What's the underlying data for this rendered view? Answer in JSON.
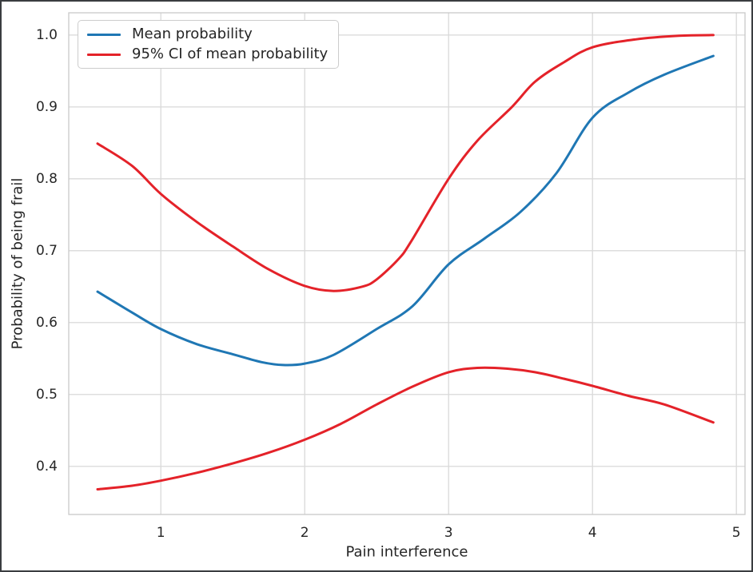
{
  "figure": {
    "background": "#ffffff",
    "outer_border_color": "#3a3d40"
  },
  "chart_data": {
    "type": "line",
    "title": "",
    "xlabel": "Pain interference",
    "ylabel": "Probability of being frail",
    "xlim": [
      0.36,
      5.06
    ],
    "ylim": [
      0.333,
      1.031
    ],
    "grid": true,
    "grid_color": "#d9d9d9",
    "spine_color": "#c9c9c9",
    "tick_color": "#262626",
    "xticks": {
      "values": [
        1,
        2,
        3,
        4,
        5
      ],
      "labels": [
        "1",
        "2",
        "3",
        "4",
        "5"
      ]
    },
    "yticks": {
      "values": [
        0.4,
        0.5,
        0.6,
        0.7,
        0.8,
        0.9,
        1.0
      ],
      "labels": [
        "0.4",
        "0.5",
        "0.6",
        "0.7",
        "0.8",
        "0.9",
        "1.0"
      ]
    },
    "legend": {
      "position": "upper left",
      "entries": [
        {
          "label": "Mean probability",
          "color": "#1f77b4"
        },
        {
          "label": "95% CI of mean probability",
          "color": "#e42229"
        }
      ]
    },
    "series": [
      {
        "name": "Mean probability",
        "color": "#1f77b4",
        "x": [
          0.56,
          0.8,
          1.0,
          1.25,
          1.5,
          1.7,
          1.85,
          2.0,
          2.2,
          2.5,
          2.75,
          3.0,
          3.25,
          3.5,
          3.75,
          4.0,
          4.25,
          4.5,
          4.84
        ],
        "y": [
          0.643,
          0.614,
          0.591,
          0.57,
          0.556,
          0.545,
          0.541,
          0.543,
          0.555,
          0.591,
          0.623,
          0.681,
          0.717,
          0.754,
          0.808,
          0.885,
          0.92,
          0.945,
          0.971
        ]
      },
      {
        "name": "95% CI of mean probability (upper)",
        "color": "#e42229",
        "x": [
          0.56,
          0.8,
          1.0,
          1.25,
          1.5,
          1.75,
          2.0,
          2.2,
          2.4,
          2.5,
          2.65,
          2.74,
          3.0,
          3.2,
          3.44,
          3.6,
          3.8,
          4.0,
          4.3,
          4.6,
          4.84
        ],
        "y": [
          0.849,
          0.818,
          0.779,
          0.74,
          0.706,
          0.674,
          0.651,
          0.644,
          0.65,
          0.66,
          0.688,
          0.713,
          0.8,
          0.853,
          0.9,
          0.935,
          0.962,
          0.983,
          0.994,
          0.999,
          1.0
        ]
      },
      {
        "name": "95% CI of mean probability (lower)",
        "color": "#e42229",
        "x": [
          0.56,
          0.8,
          1.0,
          1.25,
          1.5,
          1.75,
          2.0,
          2.25,
          2.5,
          2.75,
          3.0,
          3.2,
          3.4,
          3.6,
          3.8,
          4.0,
          4.25,
          4.5,
          4.84
        ],
        "y": [
          0.368,
          0.373,
          0.38,
          0.391,
          0.404,
          0.419,
          0.437,
          0.459,
          0.486,
          0.511,
          0.531,
          0.537,
          0.536,
          0.531,
          0.522,
          0.512,
          0.498,
          0.486,
          0.461
        ]
      }
    ]
  }
}
